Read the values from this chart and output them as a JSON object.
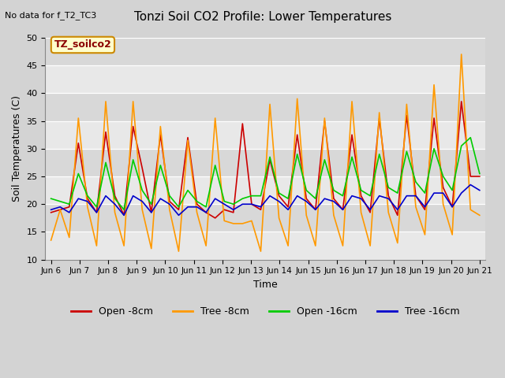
{
  "title": "Tonzi Soil CO2 Profile: Lower Temperatures",
  "subtitle": "No data for f_T2_TC3",
  "xlabel": "Time",
  "ylabel": "Soil Temperatures (C)",
  "ylim": [
    10,
    50
  ],
  "yticks": [
    10,
    15,
    20,
    25,
    30,
    35,
    40,
    45,
    50
  ],
  "series_labels": [
    "Open -8cm",
    "Tree -8cm",
    "Open -16cm",
    "Tree -16cm"
  ],
  "series_colors": [
    "#cc0000",
    "#ff9900",
    "#00cc00",
    "#0000cc"
  ],
  "legend_label": "TZ_soilco2",
  "x_labels": [
    "Jun 6",
    "Jun 7",
    "Jun 8",
    "Jun 9",
    "Jun 10",
    "Jun 11",
    "Jun 12",
    "Jun 13",
    "Jun 14",
    "Jun 15",
    "Jun 16",
    "Jun 17",
    "Jun 18",
    "Jun 19",
    "Jun 20",
    "Jun 21"
  ],
  "open_8cm": [
    18.5,
    19.0,
    19.5,
    31.0,
    21.0,
    18.5,
    33.0,
    21.5,
    18.0,
    34.0,
    26.5,
    18.5,
    32.5,
    20.5,
    19.0,
    32.0,
    20.0,
    18.5,
    17.5,
    19.0,
    18.5,
    34.5,
    20.0,
    19.0,
    28.0,
    21.5,
    19.5,
    32.5,
    21.0,
    19.0,
    35.0,
    21.0,
    19.0,
    32.5,
    21.5,
    18.5,
    35.5,
    21.5,
    18.0,
    36.0,
    21.5,
    19.0,
    35.5,
    23.0,
    19.5,
    38.5,
    25.0,
    25.0
  ],
  "tree_8cm": [
    13.5,
    19.0,
    14.0,
    35.5,
    19.5,
    12.5,
    38.5,
    18.5,
    12.5,
    38.5,
    19.0,
    12.0,
    34.0,
    19.0,
    11.5,
    31.5,
    18.5,
    12.5,
    35.5,
    17.0,
    16.5,
    16.5,
    17.0,
    11.5,
    38.0,
    17.5,
    12.5,
    39.0,
    18.0,
    12.5,
    35.5,
    18.0,
    12.5,
    38.5,
    18.5,
    12.5,
    36.5,
    18.5,
    13.0,
    38.0,
    19.5,
    14.5,
    41.5,
    20.0,
    14.5,
    47.0,
    19.0,
    18.0
  ],
  "open_16cm": [
    21.0,
    20.5,
    20.0,
    25.5,
    21.5,
    19.5,
    27.5,
    21.0,
    19.0,
    28.0,
    22.5,
    20.0,
    27.0,
    21.5,
    19.5,
    22.5,
    20.5,
    19.5,
    27.0,
    20.5,
    20.0,
    21.0,
    21.5,
    21.5,
    28.5,
    22.0,
    21.0,
    29.0,
    22.5,
    21.0,
    28.0,
    22.5,
    21.5,
    28.5,
    22.5,
    21.5,
    29.0,
    23.0,
    22.0,
    29.5,
    24.0,
    22.0,
    30.0,
    25.0,
    22.5,
    30.5,
    32.0,
    25.5
  ],
  "tree_16cm": [
    19.0,
    19.5,
    18.5,
    21.0,
    20.5,
    18.5,
    21.5,
    20.0,
    18.0,
    21.5,
    20.5,
    18.5,
    21.0,
    20.0,
    18.0,
    19.5,
    19.5,
    18.5,
    21.0,
    20.0,
    19.0,
    20.0,
    20.0,
    19.5,
    21.5,
    20.5,
    19.0,
    21.5,
    20.5,
    19.0,
    21.0,
    20.5,
    19.0,
    21.5,
    21.0,
    19.0,
    21.5,
    21.0,
    19.0,
    21.5,
    21.5,
    19.5,
    22.0,
    22.0,
    19.5,
    22.0,
    23.5,
    22.5
  ]
}
